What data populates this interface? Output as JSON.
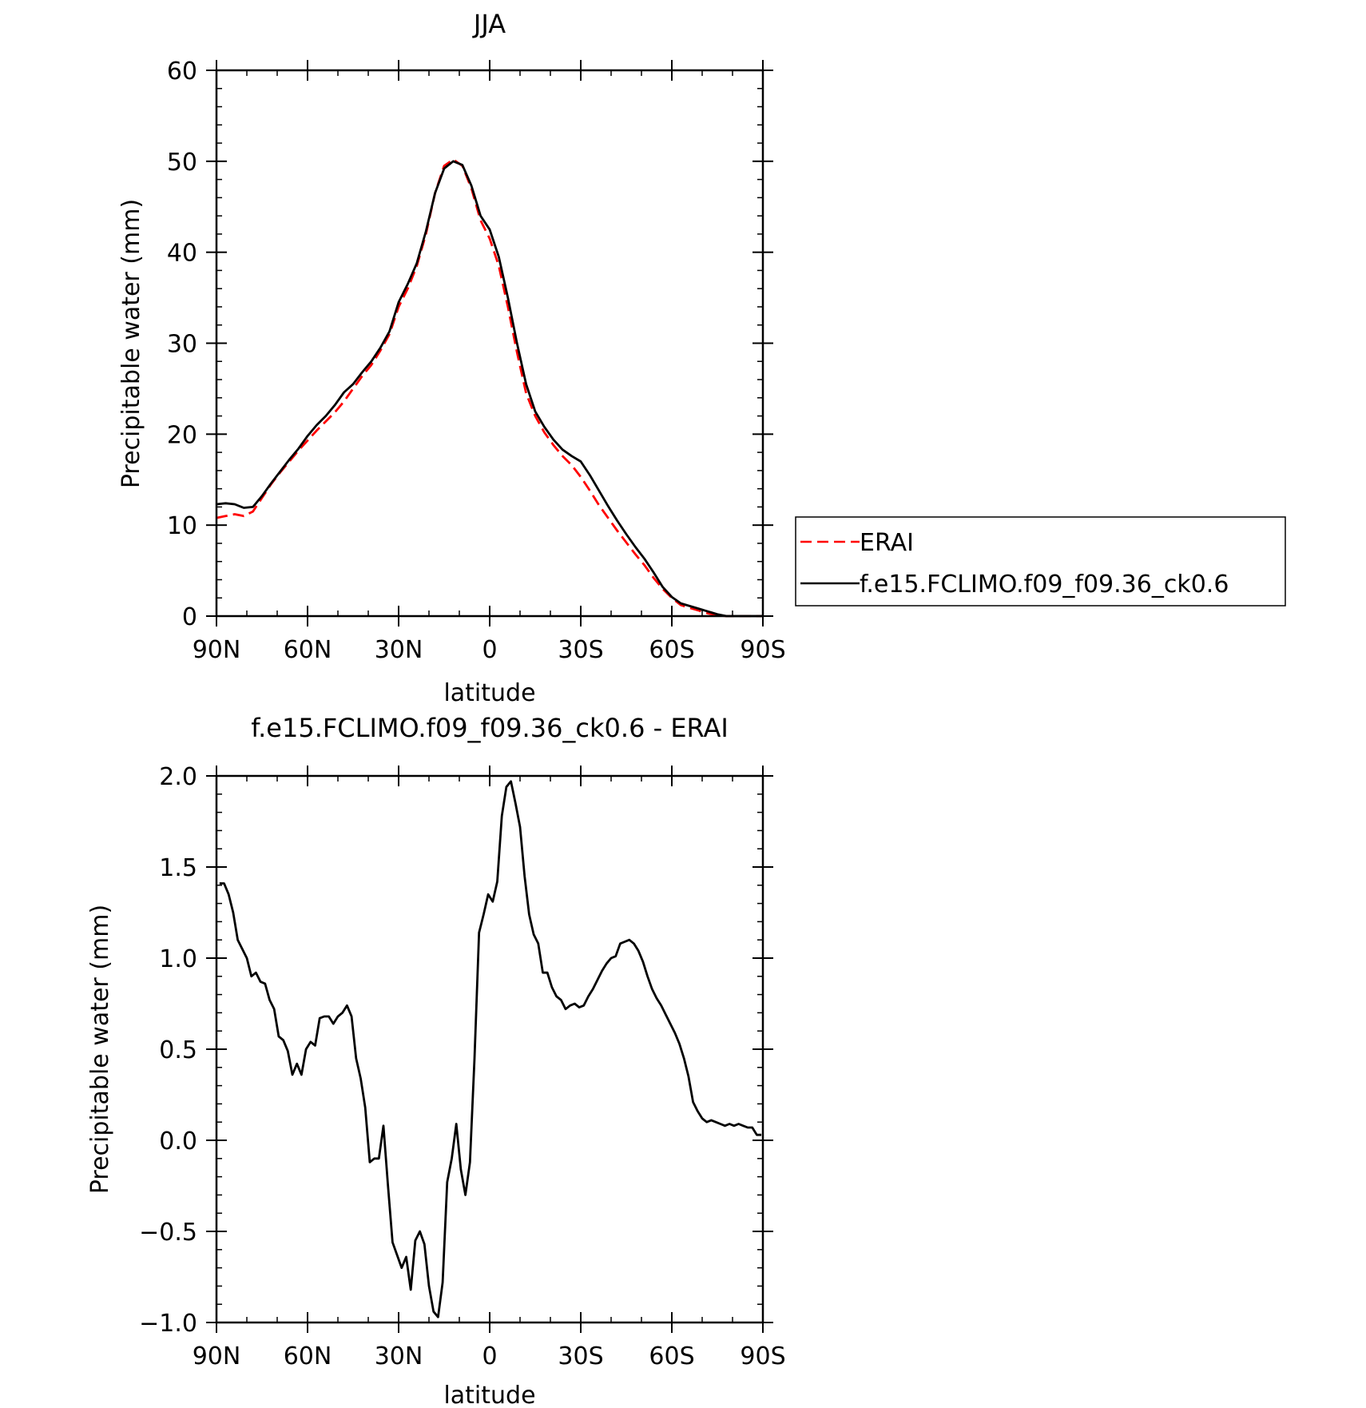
{
  "chart_data": [
    {
      "type": "line",
      "title": "JJA",
      "xlabel": "latitude",
      "ylabel": "Precipitable water (mm)",
      "xlim": [
        90,
        -90
      ],
      "ylim": [
        0,
        60
      ],
      "x_ticks": [
        90,
        60,
        30,
        0,
        -30,
        -60,
        -90
      ],
      "x_tick_labels": [
        "90N",
        "60N",
        "30N",
        "0",
        "30S",
        "60S",
        "90S"
      ],
      "y_ticks": [
        0,
        10,
        20,
        30,
        40,
        50,
        60
      ],
      "y_tick_labels": [
        "0",
        "10",
        "20",
        "30",
        "40",
        "50",
        "60"
      ],
      "grid": false,
      "legend_position": "right",
      "series": [
        {
          "name": "ERAI",
          "color": "#ff0000",
          "dash": "dashed",
          "x": [
            90,
            87,
            84,
            81,
            78,
            75,
            72,
            69,
            66,
            63,
            60,
            57,
            54,
            51,
            48,
            45,
            42,
            39,
            36,
            33,
            30,
            27,
            24,
            21,
            18,
            15,
            12,
            9,
            6,
            3,
            0,
            -3,
            -6,
            -9,
            -12,
            -15,
            -18,
            -21,
            -24,
            -27,
            -30,
            -33,
            -36,
            -39,
            -42,
            -45,
            -48,
            -51,
            -54,
            -57,
            -60,
            -63,
            -66,
            -69,
            -72,
            -75,
            -78,
            -81,
            -84,
            -87,
            -90
          ],
          "y": [
            10.8,
            11.0,
            11.2,
            11.0,
            11.5,
            13.0,
            14.5,
            15.8,
            17.0,
            18.2,
            19.3,
            20.4,
            21.4,
            22.4,
            23.6,
            25.0,
            26.4,
            27.6,
            29.2,
            31.0,
            34.0,
            36.0,
            38.5,
            42.0,
            46.5,
            49.5,
            50.2,
            49.5,
            47.0,
            43.5,
            41.5,
            38.5,
            34.0,
            29.0,
            24.5,
            22.0,
            20.2,
            18.8,
            17.6,
            16.6,
            15.3,
            13.8,
            12.2,
            10.8,
            9.4,
            8.1,
            6.8,
            5.6,
            4.2,
            3.0,
            2.0,
            1.2,
            0.9,
            0.6,
            0.3,
            0.1,
            0.0,
            0.0,
            0.0,
            0.0,
            0.0
          ]
        },
        {
          "name": "f.e15.FCLIMO.f09_f09.36_ck0.6",
          "color": "#000000",
          "dash": "solid",
          "x": [
            90,
            87,
            84,
            81,
            78,
            75,
            72,
            69,
            66,
            63,
            60,
            57,
            54,
            51,
            48,
            45,
            42,
            39,
            36,
            33,
            30,
            27,
            24,
            21,
            18,
            15,
            12,
            9,
            6,
            3,
            0,
            -3,
            -6,
            -9,
            -12,
            -15,
            -18,
            -21,
            -24,
            -27,
            -30,
            -33,
            -36,
            -39,
            -42,
            -45,
            -48,
            -51,
            -54,
            -57,
            -60,
            -63,
            -66,
            -69,
            -72,
            -75,
            -78,
            -81,
            -84,
            -87,
            -90
          ],
          "y": [
            12.3,
            12.4,
            12.3,
            11.9,
            12.0,
            13.2,
            14.6,
            15.9,
            17.2,
            18.4,
            19.8,
            21.0,
            22.0,
            23.2,
            24.6,
            25.5,
            26.8,
            28.0,
            29.5,
            31.3,
            34.5,
            36.5,
            38.8,
            42.3,
            46.5,
            49.2,
            50.0,
            49.6,
            47.3,
            44.0,
            42.5,
            39.5,
            35.0,
            30.0,
            25.5,
            22.5,
            20.8,
            19.4,
            18.3,
            17.6,
            17.0,
            15.5,
            13.8,
            12.1,
            10.5,
            9.0,
            7.6,
            6.3,
            4.8,
            3.2,
            2.1,
            1.4,
            1.1,
            0.8,
            0.5,
            0.2,
            0.0,
            0.0,
            0.0,
            0.0,
            0.0
          ]
        }
      ]
    },
    {
      "type": "line",
      "title": "f.e15.FCLIMO.f09_f09.36_ck0.6 - ERAI",
      "xlabel": "latitude",
      "ylabel": "Precipitable water (mm)",
      "xlim": [
        90,
        -90
      ],
      "ylim": [
        -1.0,
        2.0
      ],
      "x_ticks": [
        90,
        60,
        30,
        0,
        -30,
        -60,
        -90
      ],
      "x_tick_labels": [
        "90N",
        "60N",
        "30N",
        "0",
        "30S",
        "60S",
        "90S"
      ],
      "y_ticks": [
        -1.0,
        -0.5,
        0.0,
        0.5,
        1.0,
        1.5,
        2.0
      ],
      "y_tick_labels": [
        "−1.0",
        "−0.5",
        "0.0",
        "0.5",
        "1.0",
        "1.5",
        "2.0"
      ],
      "grid": false,
      "series": [
        {
          "color": "#000000",
          "dash": "solid",
          "x": [
            89,
            87.5,
            86,
            84.5,
            83,
            81.5,
            80,
            78.5,
            77,
            75.5,
            74,
            72.5,
            71,
            69.5,
            68,
            66.5,
            65,
            63.5,
            62,
            60.5,
            59,
            57.5,
            56,
            54.5,
            53,
            51.5,
            50,
            48.5,
            47,
            45.5,
            44,
            42.5,
            41,
            39.5,
            38,
            36.5,
            35,
            33.5,
            32,
            30.5,
            29,
            27.5,
            26,
            24.5,
            23,
            21.5,
            20,
            18.5,
            17,
            15.5,
            14,
            12.5,
            11,
            9.5,
            8,
            6.5,
            5,
            3.5,
            2,
            0.5,
            -1,
            -2.5,
            -4,
            -5.5,
            -7,
            -8.5,
            -10,
            -11.5,
            -13,
            -14.5,
            -16,
            -17.5,
            -19,
            -20.5,
            -22,
            -23.5,
            -25,
            -26.5,
            -28,
            -29.5,
            -31,
            -32.5,
            -34,
            -35.5,
            -37,
            -38.5,
            -40,
            -41.5,
            -43,
            -44.5,
            -46,
            -47.5,
            -49,
            -50.5,
            -52,
            -53.5,
            -55,
            -56.5,
            -58,
            -59.5,
            -61,
            -62.5,
            -64,
            -65.5,
            -67,
            -68.5,
            -70,
            -71.5,
            -73,
            -74.5,
            -76,
            -77.5,
            -79,
            -80.5,
            -82,
            -83.5,
            -85,
            -86.5,
            -88,
            -89.5
          ],
          "y": [
            1.41,
            1.41,
            1.35,
            1.25,
            1.1,
            1.05,
            1.0,
            0.9,
            0.92,
            0.87,
            0.86,
            0.77,
            0.72,
            0.57,
            0.55,
            0.49,
            0.36,
            0.42,
            0.36,
            0.5,
            0.54,
            0.52,
            0.67,
            0.68,
            0.68,
            0.64,
            0.68,
            0.7,
            0.74,
            0.68,
            0.45,
            0.34,
            0.18,
            -0.12,
            -0.1,
            -0.1,
            0.08,
            -0.25,
            -0.56,
            -0.63,
            -0.7,
            -0.64,
            -0.82,
            -0.55,
            -0.5,
            -0.57,
            -0.8,
            -0.94,
            -0.97,
            -0.78,
            -0.23,
            -0.1,
            0.09,
            -0.16,
            -0.3,
            -0.12,
            0.45,
            1.14,
            1.24,
            1.35,
            1.31,
            1.42,
            1.78,
            1.94,
            1.97,
            1.85,
            1.72,
            1.45,
            1.24,
            1.13,
            1.08,
            0.92,
            0.92,
            0.84,
            0.79,
            0.77,
            0.72,
            0.74,
            0.75,
            0.73,
            0.74,
            0.79,
            0.83,
            0.88,
            0.93,
            0.97,
            1.0,
            1.01,
            1.08,
            1.09,
            1.1,
            1.08,
            1.04,
            0.98,
            0.9,
            0.83,
            0.78,
            0.74,
            0.69,
            0.64,
            0.59,
            0.53,
            0.45,
            0.35,
            0.21,
            0.16,
            0.12,
            0.1,
            0.11,
            0.1,
            0.09,
            0.08,
            0.09,
            0.08,
            0.09,
            0.08,
            0.07,
            0.07,
            0.03,
            0.03
          ]
        }
      ]
    }
  ]
}
